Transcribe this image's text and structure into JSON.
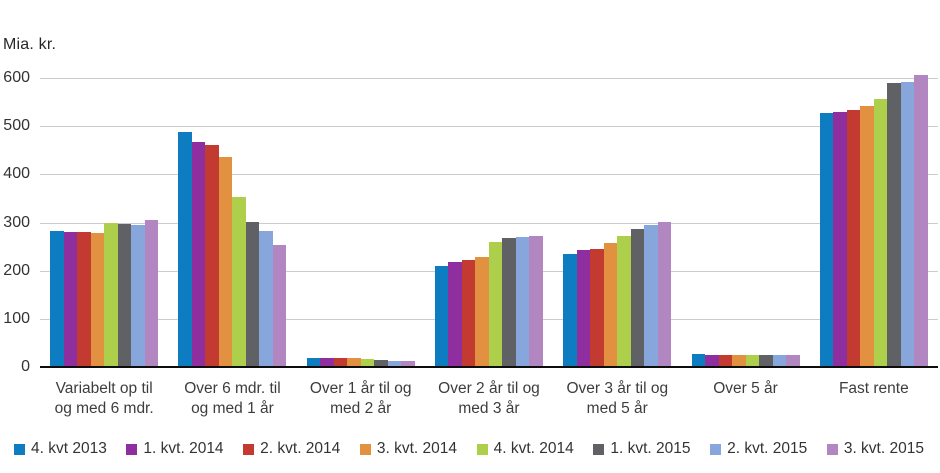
{
  "chart_data": {
    "type": "bar",
    "title": "",
    "unit_label": "Mia. kr.",
    "ylabel": "Mia. kr.",
    "xlabel": "",
    "ylim": [
      0,
      600
    ],
    "yticks": [
      0,
      100,
      200,
      300,
      400,
      500,
      600
    ],
    "grid": true,
    "legend_position": "bottom",
    "categories": [
      "Variabelt op til og med 6 mdr.",
      "Over 6 mdr. til og med 1 år",
      "Over 1 år til og med 2 år",
      "Over 2 år til og med 3 år",
      "Over 3 år til og med 5 år",
      "Over 5 år",
      "Fast rente"
    ],
    "category_label_lines": [
      [
        "Variabelt op til",
        "og med 6 mdr."
      ],
      [
        "Over 6 mdr. til",
        "og med 1 år"
      ],
      [
        "Over 1 år til og",
        "med 2 år"
      ],
      [
        "Over 2 år til og",
        "med 3 år"
      ],
      [
        "Over 3 år til og",
        "med 5 år"
      ],
      [
        "Over 5 år"
      ],
      [
        "Fast rente"
      ]
    ],
    "series": [
      {
        "name": "4. kvt 2013",
        "color": "#0d7cc1",
        "values": [
          283,
          489,
          19,
          210,
          235,
          28,
          527
        ]
      },
      {
        "name": "1. kvt. 2014",
        "color": "#8f2e9f",
        "values": [
          280,
          468,
          18,
          219,
          243,
          25,
          529
        ]
      },
      {
        "name": "2. kvt. 2014",
        "color": "#c33a30",
        "values": [
          281,
          462,
          19,
          223,
          245,
          25,
          533
        ]
      },
      {
        "name": "3. kvt. 2014",
        "color": "#e19140",
        "values": [
          278,
          437,
          18,
          228,
          257,
          25,
          543
        ]
      },
      {
        "name": "4. kvt. 2014",
        "color": "#aecf4c",
        "values": [
          300,
          354,
          17,
          259,
          273,
          25,
          557
        ]
      },
      {
        "name": "1. kvt. 2015",
        "color": "#5f6165",
        "values": [
          298,
          301,
          15,
          268,
          287,
          25,
          590
        ]
      },
      {
        "name": "2. kvt. 2015",
        "color": "#86a6dc",
        "values": [
          295,
          282,
          12,
          270,
          295,
          24,
          592
        ]
      },
      {
        "name": "3. kvt. 2015",
        "color": "#b287c1",
        "values": [
          305,
          253,
          12,
          273,
          302,
          24,
          607
        ]
      }
    ],
    "axis_colors": {
      "gridline": "#c9cdd2",
      "axis_line": "#0d0d0d",
      "text": "#333333"
    }
  }
}
